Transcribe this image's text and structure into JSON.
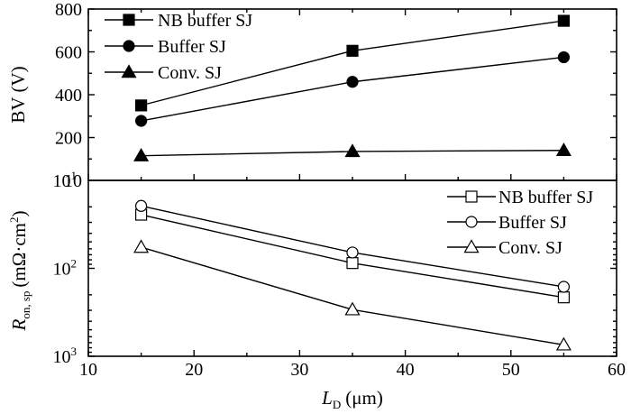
{
  "chart_data": [
    {
      "type": "line",
      "ylabel": "BV (V)",
      "yticks": [
        "800",
        "600",
        "400",
        "200",
        "10"
      ],
      "ylim": [
        0,
        800
      ],
      "xlim": [
        10,
        60
      ],
      "grid": false,
      "legend_position": "top-left",
      "series": [
        {
          "name": "NB buffer SJ",
          "marker": "filled-square",
          "x": [
            15,
            35,
            55
          ],
          "y": [
            350,
            605,
            745
          ]
        },
        {
          "name": "Buffer SJ",
          "marker": "filled-circle",
          "x": [
            15,
            35,
            55
          ],
          "y": [
            278,
            460,
            575
          ]
        },
        {
          "name": "Conv. SJ",
          "marker": "filled-triangle",
          "x": [
            15,
            35,
            55
          ],
          "y": [
            115,
            135,
            140
          ]
        }
      ]
    },
    {
      "type": "line",
      "ylabel_main": "R",
      "ylabel_sub": "on, sp",
      "ylabel_unit": "(mΩ·cm",
      "ylabel_sup": "2",
      "ylabel_close": ")",
      "xlabel_main": "L",
      "xlabel_sub": "D",
      "xlabel_unit": "(μm)",
      "xticks": [
        "10",
        "20",
        "30",
        "40",
        "50",
        "60"
      ],
      "xlim": [
        10,
        60
      ],
      "yticks": [
        {
          "base": "10",
          "exp": "1"
        },
        {
          "base": "10",
          "exp": "2"
        },
        {
          "base": "10",
          "exp": "3"
        }
      ],
      "grid": false,
      "legend_position": "top-right",
      "series": [
        {
          "name": "NB buffer SJ",
          "marker": "open-square",
          "x": [
            15,
            35,
            55
          ],
          "y": [
            1.39,
            1.94,
            2.33
          ]
        },
        {
          "name": "Buffer SJ",
          "marker": "open-circle",
          "x": [
            15,
            35,
            55
          ],
          "y": [
            1.29,
            1.82,
            2.21
          ]
        },
        {
          "name": "Conv. SJ",
          "marker": "open-triangle",
          "x": [
            15,
            35,
            55
          ],
          "y": [
            1.76,
            2.47,
            2.87
          ]
        }
      ]
    }
  ]
}
